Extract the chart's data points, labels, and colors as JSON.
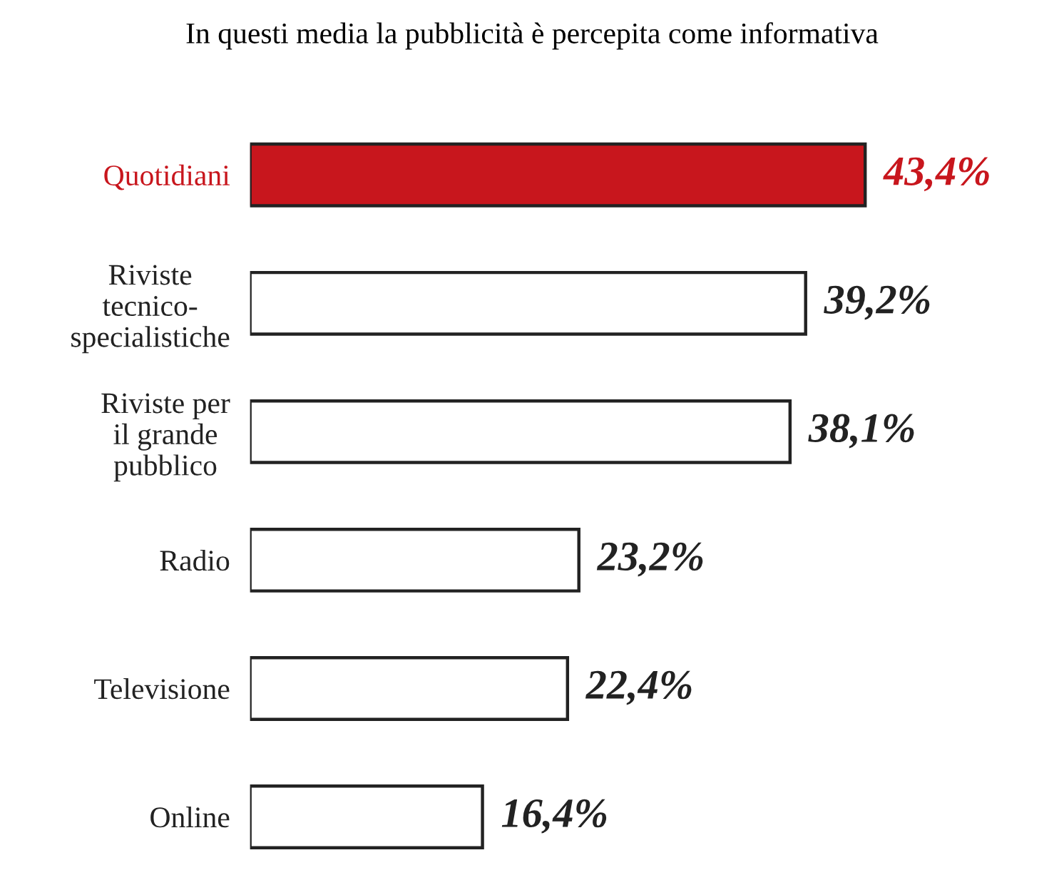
{
  "chart_data": {
    "type": "bar",
    "orientation": "horizontal",
    "title": "In questi media la pubblicità è percepita come informativa",
    "categories": [
      "Quotidiani",
      "Riviste\ntecnico-\nspecialistiche",
      "Riviste per\nil grande\npubblico",
      "Radio",
      "Televisione",
      "Online"
    ],
    "values": [
      43.4,
      39.2,
      38.1,
      23.2,
      22.4,
      16.4
    ],
    "colors": [
      "#c8161d",
      "#ffffff",
      "#ffffff",
      "#ffffff",
      "#ffffff",
      "#ffffff"
    ],
    "value_labels": [
      "43,4%",
      "39,2%",
      "38,1%",
      "23,2%",
      "22,4%",
      "16,4%"
    ],
    "grid": false,
    "legend": false
  }
}
